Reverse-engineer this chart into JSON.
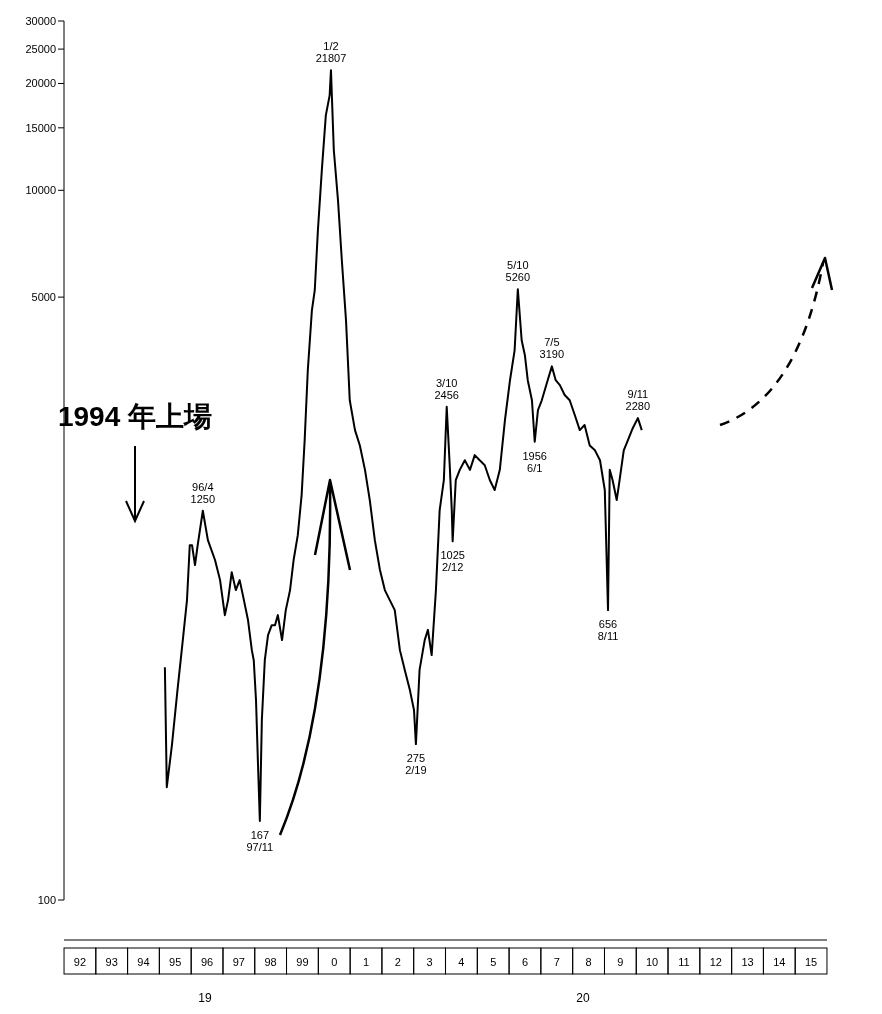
{
  "chart_data": {
    "type": "line",
    "color": "#000000",
    "log": true,
    "ylim": [
      100,
      30000
    ],
    "yticks": [
      100,
      5000,
      10000,
      15000,
      20000,
      25000,
      30000
    ],
    "xlim": [
      "1992-01-01",
      "2016-01-01"
    ],
    "xticks": [
      {
        "value": "1992-07-02",
        "label": "92"
      },
      {
        "value": "1993-07-02",
        "label": "93"
      },
      {
        "value": "1994-07-02",
        "label": "94"
      },
      {
        "value": "1995-07-02",
        "label": "95"
      },
      {
        "value": "1996-07-02",
        "label": "96"
      },
      {
        "value": "1997-07-02",
        "label": "97"
      },
      {
        "value": "1998-07-02",
        "label": "98"
      },
      {
        "value": "1999-07-02",
        "label": "99"
      },
      {
        "value": "2000-07-02",
        "label": "0"
      },
      {
        "value": "2001-07-02",
        "label": "1"
      },
      {
        "value": "2002-07-02",
        "label": "2"
      },
      {
        "value": "2003-07-02",
        "label": "3"
      },
      {
        "value": "2004-07-02",
        "label": "4"
      },
      {
        "value": "2005-07-02",
        "label": "5"
      },
      {
        "value": "2006-07-02",
        "label": "6"
      },
      {
        "value": "2007-07-02",
        "label": "7"
      },
      {
        "value": "2008-07-02",
        "label": "8"
      },
      {
        "value": "2009-07-02",
        "label": "9"
      },
      {
        "value": "2010-07-02",
        "label": "10"
      },
      {
        "value": "2011-07-02",
        "label": "11"
      },
      {
        "value": "2012-07-02",
        "label": "12"
      },
      {
        "value": "2013-07-02",
        "label": "13"
      },
      {
        "value": "2014-07-02",
        "label": "14"
      },
      {
        "value": "2015-07-02",
        "label": "15"
      }
    ],
    "x": [
      "1995-03-05",
      "1995-03-27",
      "1995-05-25",
      "1995-07-28",
      "1995-09-27",
      "1995-11-14",
      "1995-12-16",
      "1996-01-11",
      "1996-02-14",
      "1996-03-16",
      "1996-05-14",
      "1996-07-11",
      "1996-10-01",
      "1996-11-28",
      "1997-01-22",
      "1997-02-28",
      "1997-04-11",
      "1997-05-28",
      "1997-07-11",
      "1997-08-17",
      "1997-10-15",
      "1997-11-28",
      "1997-12-20",
      "1998-01-15",
      "1998-02-07",
      "1998-02-28",
      "1998-03-23",
      "1998-04-26",
      "1998-06-02",
      "1998-07-15",
      "1998-08-21",
      "1998-09-23",
      "1998-11-10",
      "1998-12-23",
      "1999-02-10",
      "1999-03-23",
      "1999-05-10",
      "1999-06-23",
      "1999-07-28",
      "1999-09-02",
      "1999-10-19",
      "1999-11-21",
      "1999-12-27",
      "2000-02-10",
      "2000-03-27",
      "2000-05-10",
      "2000-05-25",
      "2000-06-27",
      "2000-08-14",
      "2000-09-27",
      "2000-11-14",
      "2000-12-27",
      "2001-02-25",
      "2001-04-22",
      "2001-06-20",
      "2001-08-14",
      "2001-10-11",
      "2001-12-09",
      "2002-02-03",
      "2002-04-01",
      "2002-05-28",
      "2002-07-26",
      "2002-09-20",
      "2002-11-17",
      "2003-01-04",
      "2003-01-26",
      "2003-03-09",
      "2003-05-07",
      "2003-06-13",
      "2003-07-26",
      "2003-09-13",
      "2003-10-26",
      "2003-12-13",
      "2004-01-15",
      "2004-02-21",
      "2004-03-13",
      "2004-03-23",
      "2004-04-28",
      "2004-06-13",
      "2004-08-10",
      "2004-10-08",
      "2004-12-02",
      "2005-01-28",
      "2005-03-27",
      "2005-05-25",
      "2005-07-19",
      "2005-09-16",
      "2005-11-14",
      "2006-01-11",
      "2006-03-05",
      "2006-04-11",
      "2006-05-25",
      "2006-07-01",
      "2006-08-03",
      "2006-09-20",
      "2006-10-22",
      "2006-11-28",
      "2007-01-11",
      "2007-03-20",
      "2007-05-07",
      "2007-06-20",
      "2007-08-07",
      "2007-10-01",
      "2007-11-28",
      "2008-01-26",
      "2008-03-23",
      "2008-05-17",
      "2008-07-15",
      "2008-09-13",
      "2008-11-10",
      "2009-01-04",
      "2009-02-10",
      "2009-03-02",
      "2009-04-04",
      "2009-05-21",
      "2009-06-23",
      "2009-08-10",
      "2009-09-27",
      "2009-11-21",
      "2010-01-19",
      "2010-03-05"
    ],
    "values": [
      453,
      208,
      273,
      391,
      540,
      700,
      1000,
      1000,
      879,
      1000,
      1250,
      1033,
      908,
      797,
      635,
      700,
      839,
      747,
      797,
      723,
      615,
      506,
      474,
      366,
      240,
      167,
      321,
      474,
      558,
      595,
      595,
      635,
      540,
      656,
      747,
      908,
      1067,
      1384,
      1977,
      3110,
      4590,
      5230,
      7710,
      11380,
      16260,
      18520,
      21807,
      12970,
      9370,
      6350,
      4300,
      2560,
      2110,
      1910,
      1630,
      1340,
      1033,
      851,
      747,
      700,
      656,
      506,
      445,
      391,
      343,
      275,
      445,
      540,
      577,
      490,
      747,
      1256,
      1524,
      2456,
      1630,
      1256,
      1025,
      1524,
      1630,
      1735,
      1630,
      1794,
      1735,
      1680,
      1524,
      1430,
      1630,
      2250,
      2916,
      3540,
      5260,
      3780,
      3430,
      2916,
      2560,
      1956,
      2400,
      2560,
      2916,
      3190,
      2916,
      2825,
      2650,
      2560,
      2323,
      2110,
      2180,
      1910,
      1850,
      1735,
      1430,
      656,
      1630,
      1524,
      1340,
      1524,
      1850,
      1977,
      2136,
      2280,
      2110
    ],
    "annotations": [
      {
        "text": "1/2\n21807",
        "x": "2000-05-25",
        "y": 21807
      },
      {
        "text": "96/4\n1250",
        "x": "1996-05-14",
        "y": 1250
      },
      {
        "text": "167\n97/11",
        "x": "1998-02-28",
        "y": 167
      },
      {
        "text": "275\n2/19",
        "x": "2003-01-26",
        "y": 275
      },
      {
        "text": "3/10\n2456",
        "x": "2004-01-15",
        "y": 2456
      },
      {
        "text": "1025\n2/12",
        "x": "2004-03-23",
        "y": 1025
      },
      {
        "text": "5/10\n5260",
        "x": "2006-04-11",
        "y": 5260
      },
      {
        "text": "1956\n6/1",
        "x": "2006-10-22",
        "y": 1956
      },
      {
        "text": "7/5\n3190",
        "x": "2007-05-07",
        "y": 3190
      },
      {
        "text": "656\n8/11",
        "x": "2009-02-10",
        "y": 656
      },
      {
        "text": "9/11\n2280",
        "x": "2010-01-19",
        "y": 2280
      },
      "1994 年上場",
      "19",
      "20"
    ]
  }
}
